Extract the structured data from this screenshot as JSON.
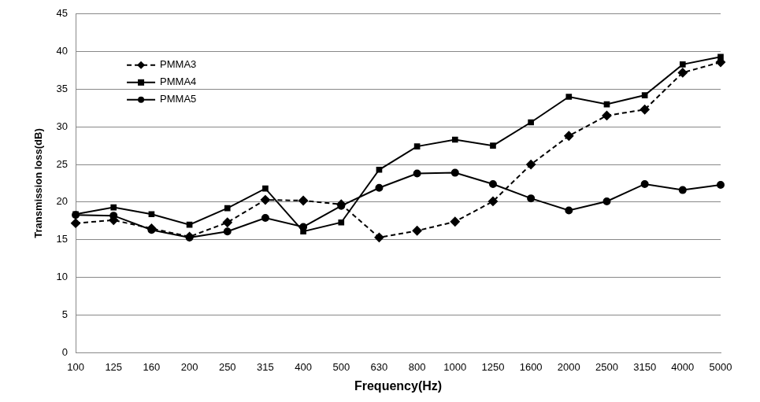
{
  "chart_data": {
    "type": "line",
    "x_label": "Frequency(Hz)",
    "y_label": "Transmission loss(dB)",
    "categories": [
      "100",
      "125",
      "160",
      "200",
      "250",
      "315",
      "400",
      "500",
      "630",
      "800",
      "1000",
      "1250",
      "1600",
      "2000",
      "2500",
      "3150",
      "4000",
      "5000"
    ],
    "series": [
      {
        "name": "PMMA3",
        "color": "#000000",
        "marker": "diamond",
        "line_style": "dashed",
        "values": [
          17.2,
          17.6,
          16.5,
          15.4,
          17.3,
          20.3,
          20.2,
          19.7,
          15.3,
          16.2,
          17.4,
          20.1,
          25.0,
          28.8,
          31.5,
          32.3,
          37.2,
          38.6
        ]
      },
      {
        "name": "PMMA4",
        "color": "#000000",
        "marker": "square",
        "line_style": "solid",
        "values": [
          18.4,
          19.3,
          18.4,
          17.0,
          19.2,
          21.8,
          16.1,
          17.3,
          24.3,
          27.4,
          28.3,
          27.5,
          30.6,
          34.0,
          33.0,
          34.2,
          38.3,
          39.3
        ]
      },
      {
        "name": "PMMA5",
        "color": "#000000",
        "marker": "circle",
        "line_style": "solid",
        "values": [
          18.3,
          18.2,
          16.3,
          15.3,
          16.1,
          17.9,
          16.7,
          19.5,
          21.9,
          23.8,
          23.9,
          22.4,
          20.5,
          18.9,
          20.1,
          22.4,
          21.6,
          22.3
        ]
      }
    ],
    "ylim": [
      0,
      45
    ],
    "yticks": [
      0,
      5,
      10,
      15,
      20,
      25,
      30,
      35,
      40,
      45
    ],
    "grid": true,
    "legend": "top-left"
  }
}
